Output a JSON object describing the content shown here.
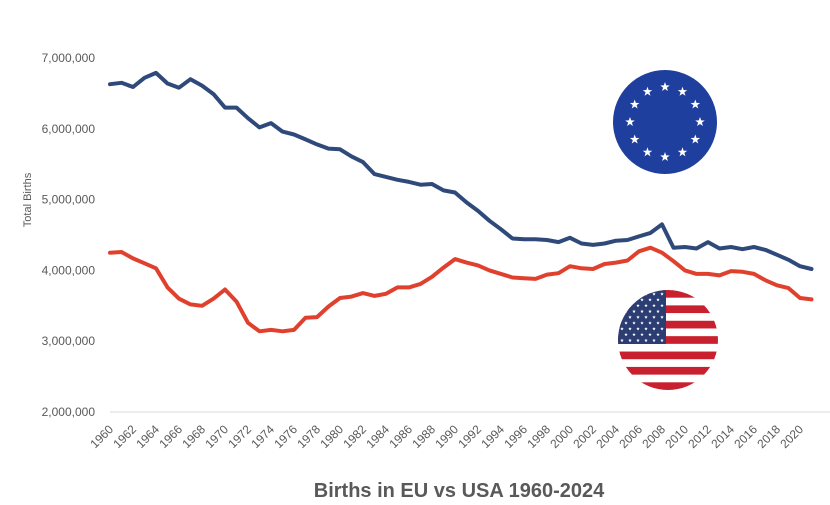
{
  "chart_data": {
    "type": "line",
    "title": "Births in EU vs USA 1960-2024",
    "xlabel": "",
    "ylabel": "Total Births",
    "ylim": [
      2000000,
      7000000
    ],
    "y_ticks": [
      "2,000,000",
      "3,000,000",
      "4,000,000",
      "5,000,000",
      "6,000,000",
      "7,000,000"
    ],
    "x_tick_labels": [
      "1960",
      "1962",
      "1964",
      "1966",
      "1968",
      "1970",
      "1972",
      "1974",
      "1976",
      "1978",
      "1980",
      "1982",
      "1984",
      "1986",
      "1988",
      "1990",
      "1992",
      "1994",
      "1996",
      "1998",
      "2000",
      "2002",
      "2004",
      "2006",
      "2008",
      "2010",
      "2012",
      "2014",
      "2016",
      "2018",
      "2020"
    ],
    "grid": false,
    "legend": "none",
    "x": [
      1960,
      1961,
      1962,
      1963,
      1964,
      1965,
      1966,
      1967,
      1968,
      1969,
      1970,
      1971,
      1972,
      1973,
      1974,
      1975,
      1976,
      1977,
      1978,
      1979,
      1980,
      1981,
      1982,
      1983,
      1984,
      1985,
      1986,
      1987,
      1988,
      1989,
      1990,
      1991,
      1992,
      1993,
      1994,
      1995,
      1996,
      1997,
      1998,
      1999,
      2000,
      2001,
      2002,
      2003,
      2004,
      2005,
      2006,
      2007,
      2008,
      2009,
      2010,
      2011,
      2012,
      2013,
      2014,
      2015,
      2016,
      2017,
      2018,
      2019,
      2020,
      2021
    ],
    "series": [
      {
        "icon": "eu-flag-icon",
        "color": "#2f4a7a",
        "values": [
          6630000,
          6650000,
          6590000,
          6720000,
          6790000,
          6640000,
          6580000,
          6700000,
          6610000,
          6490000,
          6300000,
          6300000,
          6150000,
          6020000,
          6080000,
          5960000,
          5920000,
          5850000,
          5780000,
          5720000,
          5710000,
          5610000,
          5530000,
          5360000,
          5320000,
          5280000,
          5250000,
          5210000,
          5220000,
          5130000,
          5100000,
          4960000,
          4840000,
          4700000,
          4580000,
          4450000,
          4440000,
          4440000,
          4430000,
          4400000,
          4460000,
          4380000,
          4360000,
          4380000,
          4420000,
          4430000,
          4480000,
          4530000,
          4650000,
          4320000,
          4330000,
          4310000,
          4400000,
          4310000,
          4330000,
          4300000,
          4330000,
          4290000,
          4220000,
          4150000,
          4060000,
          4020000
        ]
      },
      {
        "icon": "us-flag-icon",
        "color": "#e0412e",
        "values": [
          4250000,
          4260000,
          4170000,
          4100000,
          4030000,
          3760000,
          3600000,
          3520000,
          3500000,
          3600000,
          3730000,
          3560000,
          3260000,
          3140000,
          3160000,
          3140000,
          3160000,
          3330000,
          3340000,
          3490000,
          3610000,
          3630000,
          3680000,
          3640000,
          3670000,
          3760000,
          3760000,
          3810000,
          3910000,
          4040000,
          4160000,
          4110000,
          4070000,
          4000000,
          3950000,
          3900000,
          3890000,
          3880000,
          3940000,
          3960000,
          4060000,
          4030000,
          4020000,
          4090000,
          4110000,
          4140000,
          4270000,
          4320000,
          4250000,
          4130000,
          4000000,
          3950000,
          3950000,
          3930000,
          3990000,
          3980000,
          3950000,
          3860000,
          3790000,
          3750000,
          3610000,
          3590000
        ]
      }
    ]
  }
}
